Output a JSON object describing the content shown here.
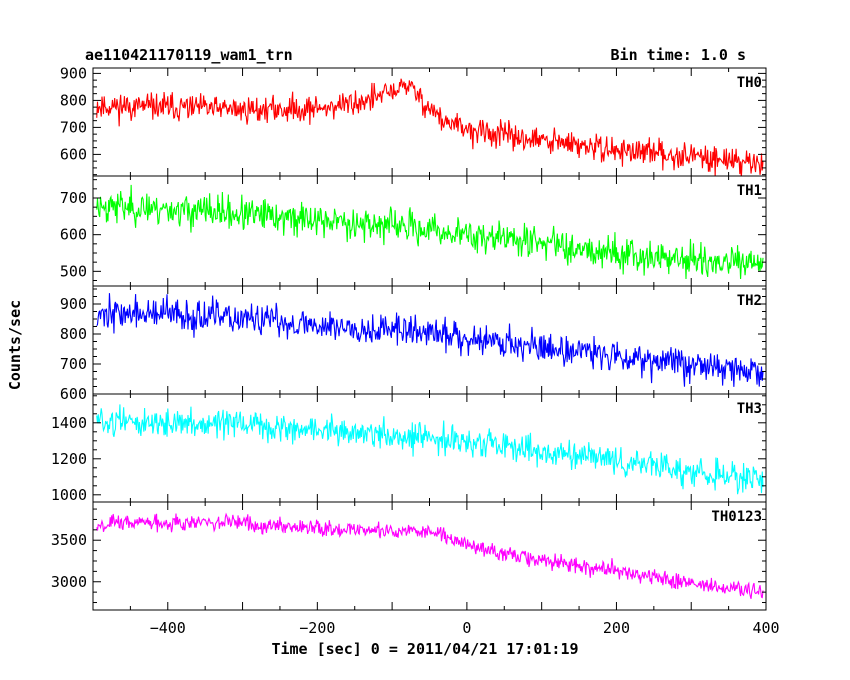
{
  "chart_data": {
    "type": "line",
    "title": "ae110421170119_wam1_trn",
    "subtitle": "Bin time: 1.0 s",
    "xlabel": "Time [sec] 0 = 2011/04/21 17:01:19",
    "ylabel": "Counts/sec",
    "xlim": [
      -500,
      400
    ],
    "xticks": [
      -400,
      -200,
      0,
      200,
      400
    ],
    "xtick_labels": [
      "−400",
      "−200",
      "0",
      "200",
      "400"
    ],
    "panels": [
      {
        "name": "TH0",
        "color": "#ff0000",
        "ylim": [
          520,
          920
        ],
        "yticks": [
          600,
          700,
          800,
          900
        ],
        "ytick_labels": [
          "600",
          "700",
          "800",
          "900"
        ],
        "noise": 35,
        "seed": 11,
        "profile": [
          [
            -495,
            780
          ],
          [
            -400,
            775
          ],
          [
            -300,
            765
          ],
          [
            -200,
            770
          ],
          [
            -150,
            790
          ],
          [
            -110,
            820
          ],
          [
            -80,
            860
          ],
          [
            -60,
            800
          ],
          [
            -30,
            720
          ],
          [
            0,
            690
          ],
          [
            50,
            670
          ],
          [
            100,
            650
          ],
          [
            200,
            615
          ],
          [
            300,
            595
          ],
          [
            395,
            565
          ]
        ]
      },
      {
        "name": "TH1",
        "color": "#00ff00",
        "ylim": [
          460,
          760
        ],
        "yticks": [
          500,
          600,
          700
        ],
        "ytick_labels": [
          "500",
          "600",
          "700"
        ],
        "noise": 32,
        "seed": 23,
        "profile": [
          [
            -495,
            680
          ],
          [
            -400,
            670
          ],
          [
            -300,
            655
          ],
          [
            -200,
            640
          ],
          [
            -100,
            625
          ],
          [
            0,
            600
          ],
          [
            100,
            580
          ],
          [
            200,
            550
          ],
          [
            300,
            530
          ],
          [
            395,
            515
          ]
        ]
      },
      {
        "name": "TH2",
        "color": "#0000ff",
        "ylim": [
          600,
          960
        ],
        "yticks": [
          600,
          700,
          800,
          900
        ],
        "ytick_labels": [
          "600",
          "700",
          "800",
          "900"
        ],
        "noise": 38,
        "seed": 37,
        "profile": [
          [
            -495,
            870
          ],
          [
            -400,
            865
          ],
          [
            -300,
            850
          ],
          [
            -200,
            830
          ],
          [
            -100,
            815
          ],
          [
            0,
            790
          ],
          [
            100,
            755
          ],
          [
            200,
            730
          ],
          [
            300,
            700
          ],
          [
            395,
            670
          ]
        ]
      },
      {
        "name": "TH3",
        "color": "#00ffff",
        "ylim": [
          960,
          1560
        ],
        "yticks": [
          1000,
          1200,
          1400
        ],
        "ytick_labels": [
          "1000",
          "1200",
          "1400"
        ],
        "noise": 55,
        "seed": 51,
        "profile": [
          [
            -495,
            1410
          ],
          [
            -400,
            1400
          ],
          [
            -300,
            1385
          ],
          [
            -200,
            1360
          ],
          [
            -100,
            1330
          ],
          [
            0,
            1290
          ],
          [
            100,
            1240
          ],
          [
            200,
            1190
          ],
          [
            300,
            1130
          ],
          [
            395,
            1070
          ]
        ]
      },
      {
        "name": "TH0123",
        "color": "#ff00ff",
        "ylim": [
          2660,
          3960
        ],
        "yticks": [
          3000,
          3500
        ],
        "ytick_labels": [
          "3000",
          "3500"
        ],
        "noise": 70,
        "seed": 67,
        "profile": [
          [
            -495,
            3700
          ],
          [
            -400,
            3720
          ],
          [
            -300,
            3700
          ],
          [
            -200,
            3660
          ],
          [
            -100,
            3600
          ],
          [
            -50,
            3620
          ],
          [
            0,
            3450
          ],
          [
            50,
            3330
          ],
          [
            100,
            3260
          ],
          [
            200,
            3130
          ],
          [
            300,
            2980
          ],
          [
            395,
            2870
          ]
        ]
      }
    ]
  }
}
